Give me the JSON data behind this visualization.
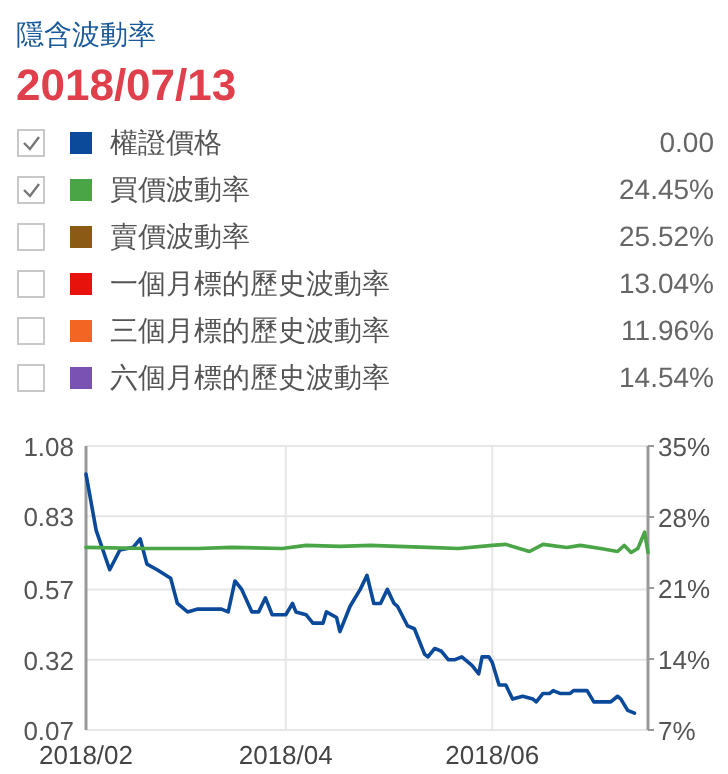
{
  "chart_data": {
    "type": "line",
    "title": "隱含波動率",
    "subtitle": "2018/07/13",
    "legend": "top",
    "series": [
      {
        "name": "權證價格",
        "color": "#0b4a9a",
        "axis": "y",
        "x": [
          "2018-02-01",
          "2018-02-04",
          "2018-02-08",
          "2018-02-11",
          "2018-02-15",
          "2018-02-17",
          "2018-02-19",
          "2018-02-22",
          "2018-02-26",
          "2018-02-28",
          "2018-03-03",
          "2018-03-06",
          "2018-03-13",
          "2018-03-15",
          "2018-03-17",
          "2018-03-19",
          "2018-03-22",
          "2018-03-24",
          "2018-03-26",
          "2018-03-28",
          "2018-04-01",
          "2018-04-03",
          "2018-04-04",
          "2018-04-07",
          "2018-04-09",
          "2018-04-12",
          "2018-04-13",
          "2018-04-16",
          "2018-04-17",
          "2018-04-20",
          "2018-04-23",
          "2018-04-25",
          "2018-04-27",
          "2018-04-29",
          "2018-05-01",
          "2018-05-03",
          "2018-05-04",
          "2018-05-07",
          "2018-05-09",
          "2018-05-12",
          "2018-05-13",
          "2018-05-15",
          "2018-05-17",
          "2018-05-19",
          "2018-05-21",
          "2018-05-23",
          "2018-05-26",
          "2018-05-28",
          "2018-05-29",
          "2018-05-31",
          "2018-06-01",
          "2018-06-03",
          "2018-06-05",
          "2018-06-07",
          "2018-06-10",
          "2018-06-13",
          "2018-06-14",
          "2018-06-16",
          "2018-06-18",
          "2018-06-19",
          "2018-06-21",
          "2018-06-24",
          "2018-06-25",
          "2018-06-27",
          "2018-06-29",
          "2018-07-01",
          "2018-07-05",
          "2018-07-06",
          "2018-07-08",
          "2018-07-09",
          "2018-07-11",
          "2018-07-13"
        ],
        "values": [
          0.98,
          0.78,
          0.64,
          0.71,
          0.72,
          0.75,
          0.66,
          0.64,
          0.61,
          0.52,
          0.49,
          0.5,
          0.5,
          0.49,
          0.6,
          0.57,
          0.49,
          0.49,
          0.54,
          0.48,
          0.48,
          0.52,
          0.49,
          0.48,
          0.45,
          0.45,
          0.49,
          0.47,
          0.42,
          0.51,
          0.57,
          0.62,
          0.52,
          0.52,
          0.57,
          0.52,
          0.51,
          0.44,
          0.43,
          0.34,
          0.33,
          0.36,
          0.35,
          0.32,
          0.32,
          0.33,
          0.3,
          0.27,
          0.33,
          0.33,
          0.31,
          0.23,
          0.23,
          0.18,
          0.19,
          0.18,
          0.17,
          0.2,
          0.2,
          0.21,
          0.2,
          0.2,
          0.21,
          0.21,
          0.21,
          0.17,
          0.17,
          0.17,
          0.19,
          0.18,
          0.14,
          0.13
        ]
      },
      {
        "name": "買價波動率",
        "color": "#4aa546",
        "axis": "y2",
        "x": [
          "2018-02-01",
          "2018-02-19",
          "2018-03-06",
          "2018-03-16",
          "2018-03-31",
          "2018-04-07",
          "2018-04-17",
          "2018-04-26",
          "2018-05-04",
          "2018-05-13",
          "2018-05-22",
          "2018-06-01",
          "2018-06-05",
          "2018-06-12",
          "2018-06-16",
          "2018-06-23",
          "2018-06-27",
          "2018-07-03",
          "2018-07-08",
          "2018-07-10",
          "2018-07-12",
          "2018-07-14",
          "2018-07-16",
          "2018-07-17"
        ],
        "values": [
          25.0,
          24.9,
          24.9,
          25.0,
          24.9,
          25.2,
          25.1,
          25.2,
          25.1,
          25.0,
          24.9,
          25.2,
          25.3,
          24.6,
          25.3,
          25.0,
          25.2,
          24.9,
          24.6,
          25.2,
          24.5,
          24.9,
          26.5,
          24.5
        ]
      },
      {
        "name": "賣價波動率",
        "color": "#8b5a14"
      },
      {
        "name": "一個月標的歷史波動率",
        "color": "#e8120c"
      },
      {
        "name": "三個月標的歷史波動率",
        "color": "#f26522"
      },
      {
        "name": "六個月標的歷史波動率",
        "color": "#7a52b3"
      }
    ],
    "annotations": [
      "0.00",
      "24.45%",
      "25.52%",
      "13.04%",
      "11.96%",
      "14.54%"
    ],
    "xlim": [
      "2018-02-01",
      "2018-07-17"
    ],
    "xticks": [
      {
        "value": "2018-02-01",
        "label": "2018/02"
      },
      {
        "value": "2018-04-01",
        "label": "2018/04"
      },
      {
        "value": "2018-06-01",
        "label": "2018/06"
      }
    ],
    "ylim": [
      0.07,
      1.08
    ],
    "yticks": [
      0.07,
      0.32,
      0.57,
      0.83,
      1.08
    ],
    "y2lim": [
      7,
      35
    ],
    "y2ticks": [
      {
        "value": 7,
        "label": "7%"
      },
      {
        "value": 14,
        "label": "14%"
      },
      {
        "value": 21,
        "label": "21%"
      },
      {
        "value": 28,
        "label": "28%"
      },
      {
        "value": 35,
        "label": "35%"
      }
    ],
    "grid": true,
    "line_style": "solid",
    "marker": "none"
  }
}
